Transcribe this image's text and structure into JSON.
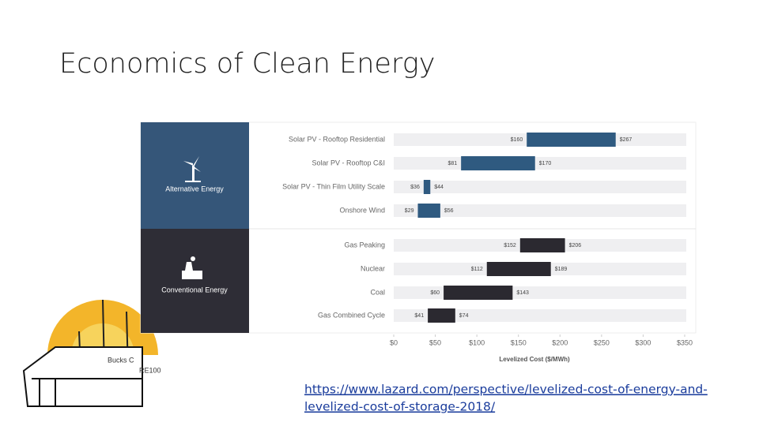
{
  "slide": {
    "title": "Economics of Clean Energy",
    "link_lines": [
      "https://www.lazard.com/perspective/levelized-cost-of-energy-and-",
      "levelized-cost-of-storage-2018/"
    ],
    "logo_lines": [
      "Bucks C",
      "RE100"
    ]
  },
  "chart_data": {
    "type": "floating-bar",
    "groups": [
      {
        "label": "Alternative Energy",
        "panel_color": "#355679",
        "bar_color": "#2f5a80"
      },
      {
        "label": "Conventional Energy",
        "panel_color": "#2e2d36",
        "bar_color": "#2b2930"
      }
    ],
    "categories": [
      "Solar PV - Rooftop Residential",
      "Solar PV - Rooftop C&I",
      "Solar PV - Thin Film Utility Scale",
      "Onshore Wind",
      "Gas Peaking",
      "Nuclear",
      "Coal",
      "Gas Combined Cycle"
    ],
    "category_groups": [
      0,
      0,
      0,
      0,
      1,
      1,
      1,
      1
    ],
    "low": [
      160,
      81,
      36,
      29,
      152,
      112,
      60,
      41
    ],
    "low_labels": [
      "$160",
      "$81",
      "$36",
      "$29",
      "$152",
      "$112",
      "$60",
      "$41"
    ],
    "high": [
      267,
      170,
      44,
      56,
      206,
      189,
      143,
      74
    ],
    "high_labels": [
      "$267",
      "$170",
      "$44",
      "$56",
      "$206",
      "$189",
      "$143",
      "$74"
    ],
    "xlabel": "Levelized Cost ($/MWh)",
    "xlim": [
      0,
      350
    ],
    "xticks": [
      {
        "value": 0,
        "label": "$0"
      },
      {
        "value": 50,
        "label": "$50"
      },
      {
        "value": 100,
        "label": "$100"
      },
      {
        "value": 150,
        "label": "$150"
      },
      {
        "value": 200,
        "label": "$200"
      },
      {
        "value": 250,
        "label": "$250"
      },
      {
        "value": 300,
        "label": "$300"
      },
      {
        "value": 350,
        "label": "$350"
      }
    ]
  }
}
